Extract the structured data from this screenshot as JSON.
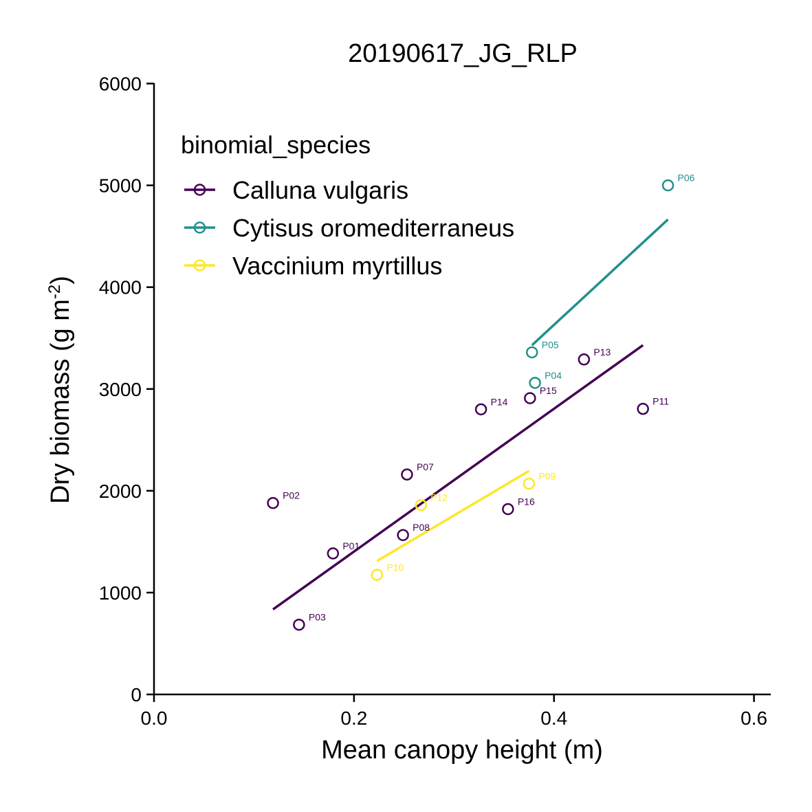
{
  "chart_data": {
    "type": "scatter",
    "title": "20190617_JG_RLP",
    "xlabel": "Mean canopy height (m)",
    "ylabel_main": "Dry biomass (g m",
    "ylabel_sup": "-2",
    "ylabel_close": ")",
    "xlim": [
      0.0,
      0.62
    ],
    "ylim": [
      0,
      6000
    ],
    "x_ticks": [
      0.0,
      0.2,
      0.4,
      0.6
    ],
    "x_tick_labels": [
      "0.0",
      "0.2",
      "0.4",
      "0.6"
    ],
    "y_ticks": [
      0,
      1000,
      2000,
      3000,
      4000,
      5000,
      6000
    ],
    "y_tick_labels": [
      "0",
      "1000",
      "2000",
      "3000",
      "4000",
      "5000",
      "6000"
    ],
    "grid": false,
    "legend": {
      "title": "binomial_species",
      "placement": "top-left"
    },
    "series": [
      {
        "name": "Calluna vulgaris",
        "color": "#440154",
        "points": [
          {
            "label": "P01",
            "x": 0.179,
            "y": 1385
          },
          {
            "label": "P02",
            "x": 0.119,
            "y": 1880
          },
          {
            "label": "P03",
            "x": 0.145,
            "y": 685
          },
          {
            "label": "P07",
            "x": 0.253,
            "y": 2160
          },
          {
            "label": "P08",
            "x": 0.249,
            "y": 1565
          },
          {
            "label": "P11",
            "x": 0.489,
            "y": 2805
          },
          {
            "label": "P13",
            "x": 0.43,
            "y": 3290
          },
          {
            "label": "P14",
            "x": 0.327,
            "y": 2800
          },
          {
            "label": "P15",
            "x": 0.376,
            "y": 2910
          },
          {
            "label": "P16",
            "x": 0.354,
            "y": 1820
          }
        ],
        "fit": {
          "x": [
            0.119,
            0.489
          ],
          "y": [
            835,
            3430
          ]
        }
      },
      {
        "name": "Cytisus oromediterraneus",
        "color": "#21908C",
        "points": [
          {
            "label": "P04",
            "x": 0.381,
            "y": 3060
          },
          {
            "label": "P05",
            "x": 0.378,
            "y": 3360
          },
          {
            "label": "P06",
            "x": 0.514,
            "y": 5000
          }
        ],
        "fit": {
          "x": [
            0.378,
            0.514
          ],
          "y": [
            3430,
            4665
          ]
        }
      },
      {
        "name": "Vaccinium myrtillus",
        "color": "#FDE725",
        "points": [
          {
            "label": "P09",
            "x": 0.375,
            "y": 2070
          },
          {
            "label": "P10",
            "x": 0.223,
            "y": 1175
          },
          {
            "label": "P12",
            "x": 0.267,
            "y": 1860
          }
        ],
        "fit": {
          "x": [
            0.223,
            0.375
          ],
          "y": [
            1310,
            2195
          ]
        }
      }
    ]
  }
}
